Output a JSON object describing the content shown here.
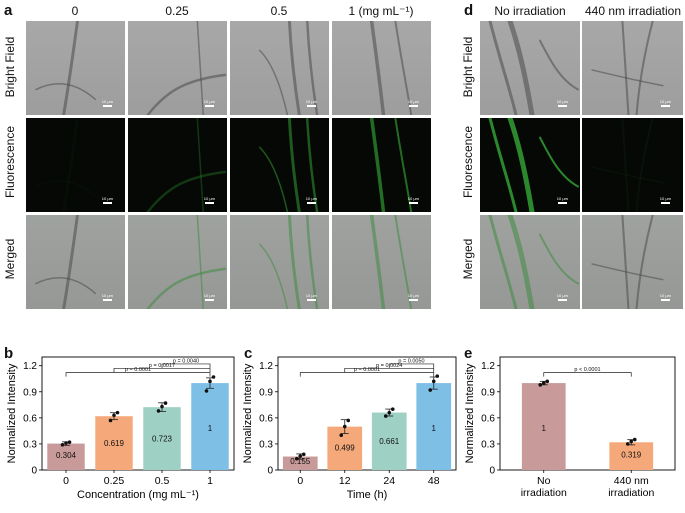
{
  "panel_labels": {
    "a": "a",
    "b": "b",
    "c": "c",
    "d": "d",
    "e": "e"
  },
  "panel_a": {
    "column_titles": [
      "0",
      "0.25",
      "0.5",
      "1 (mg mL⁻¹)"
    ],
    "row_titles": [
      "Bright Field",
      "Fluorescence",
      "Merged"
    ],
    "scale_label": "10 μm"
  },
  "panel_d": {
    "column_titles": [
      "No irradiation",
      "440 nm irradiation"
    ],
    "row_titles": [
      "Bright Field",
      "Fluorescence",
      "Merged"
    ],
    "scale_label": "10 μm"
  },
  "colors": {
    "bar_red": "#c99a9a",
    "bar_orange": "#f5a97a",
    "bar_teal": "#9ed1c4",
    "bar_blue": "#7ebfe6",
    "fluorescence_green": "#2e8f2e"
  },
  "chart_data": [
    {
      "id": "b",
      "type": "bar",
      "categories": [
        "0",
        "0.25",
        "0.5",
        "1"
      ],
      "values": [
        0.304,
        0.619,
        0.723,
        1
      ],
      "value_labels": [
        "0.304",
        "0.619",
        "0.723",
        "1"
      ],
      "errors": [
        0.02,
        0.04,
        0.05,
        0.06
      ],
      "points": [
        [
          0.29,
          0.31,
          0.32
        ],
        [
          0.57,
          0.63,
          0.66
        ],
        [
          0.68,
          0.73,
          0.77
        ],
        [
          0.91,
          1.02,
          1.07
        ]
      ],
      "xlabel": "Concentration (mg mL⁻¹)",
      "ylabel": "Normalized Intensity",
      "ylim": [
        0,
        1.3
      ],
      "yticks": [
        "0",
        "0.3",
        "0.6",
        "0.9",
        "1.2"
      ],
      "significance": [
        {
          "from": 2,
          "to": 3,
          "label": "p = 0.0040"
        },
        {
          "from": 1,
          "to": 3,
          "label": "p = 0.0017"
        },
        {
          "from": 0,
          "to": 3,
          "label": "p = 0.0001"
        }
      ]
    },
    {
      "id": "c",
      "type": "bar",
      "categories": [
        "0",
        "12",
        "24",
        "48"
      ],
      "values": [
        0.155,
        0.499,
        0.661,
        1
      ],
      "value_labels": [
        "0.155",
        "0.499",
        "0.661",
        "1"
      ],
      "errors": [
        0.03,
        0.08,
        0.04,
        0.07
      ],
      "points": [
        [
          0.13,
          0.16,
          0.18
        ],
        [
          0.4,
          0.5,
          0.57
        ],
        [
          0.62,
          0.66,
          0.7
        ],
        [
          0.92,
          1.02,
          1.08
        ]
      ],
      "xlabel": "Time (h)",
      "ylabel": "Normalized Intensity",
      "ylim": [
        0,
        1.3
      ],
      "yticks": [
        "0",
        "0.3",
        "0.6",
        "0.9",
        "1.2"
      ],
      "significance": [
        {
          "from": 2,
          "to": 3,
          "label": "p = 0.0050"
        },
        {
          "from": 1,
          "to": 3,
          "label": "p = 0.0024"
        },
        {
          "from": 0,
          "to": 3,
          "label": "p = 0.0001"
        }
      ]
    },
    {
      "id": "e",
      "type": "bar",
      "categories": [
        "No\nirradiation",
        "440 nm\nirradiation"
      ],
      "values": [
        1,
        0.319
      ],
      "value_labels": [
        "1",
        "0.319"
      ],
      "errors": [
        0.02,
        0.03
      ],
      "points": [
        [
          0.98,
          1.0,
          1.02
        ],
        [
          0.3,
          0.33,
          0.35
        ]
      ],
      "xlabel": "",
      "ylabel": "Normalized Intensity",
      "ylim": [
        0,
        1.3
      ],
      "yticks": [
        "0",
        "0.3",
        "0.6",
        "0.9",
        "1.2"
      ],
      "significance": [
        {
          "from": 0,
          "to": 1,
          "label": "p < 0.0001"
        }
      ]
    }
  ]
}
